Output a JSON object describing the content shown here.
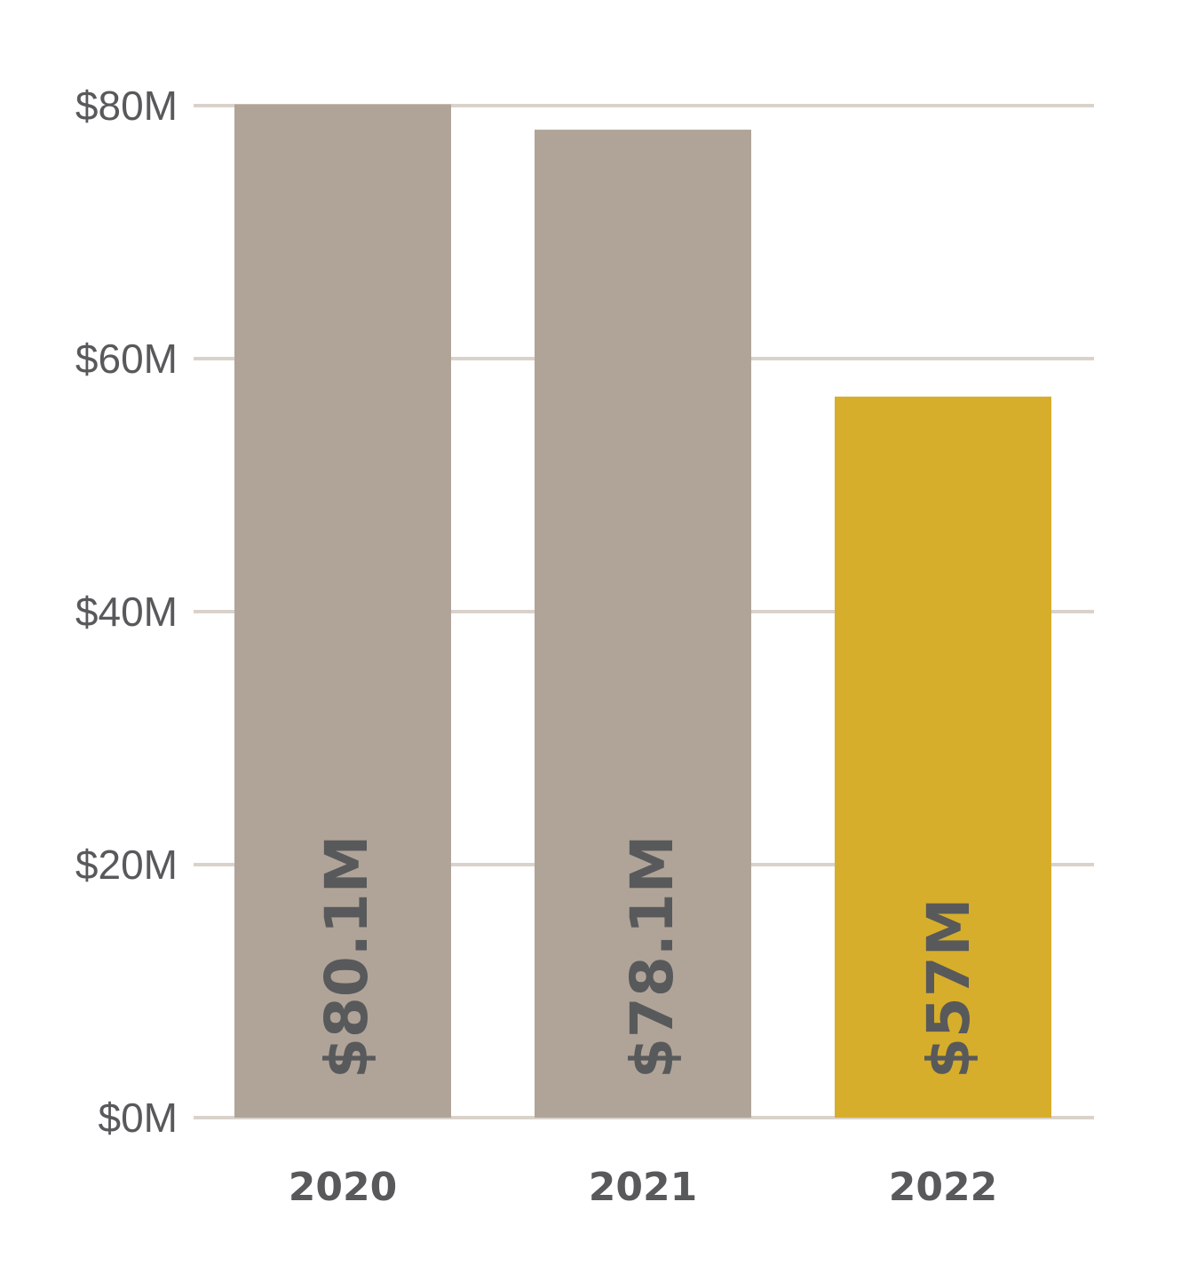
{
  "chart_data": {
    "type": "bar",
    "categories": [
      "2020",
      "2021",
      "2022"
    ],
    "values": [
      80.1,
      78.1,
      57
    ],
    "value_labels": [
      "$80.1M",
      "$78.1M",
      "$57M"
    ],
    "yticks": [
      0,
      20,
      40,
      60,
      80
    ],
    "ytick_labels": [
      "$0M",
      "$20M",
      "$40M",
      "$60M",
      "$80M"
    ],
    "ylim": [
      0,
      80
    ],
    "grid": true,
    "legend": "none",
    "colors": [
      "#b0a498",
      "#b0a498",
      "#d7ae2b"
    ],
    "gridline_color": "#d9d2cb",
    "label_color": "#58595b"
  }
}
